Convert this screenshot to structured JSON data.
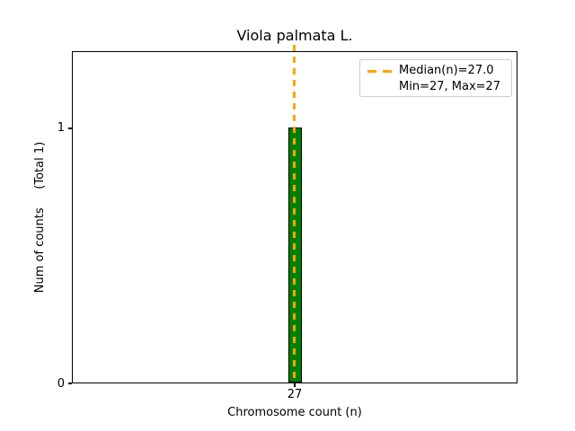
{
  "chart_data": {
    "type": "bar",
    "title": "Viola palmata L.",
    "xlabel": "Chromosome count (n)",
    "ylabel": "Num of counts     (Total 1)",
    "x": [
      27
    ],
    "values": [
      1
    ],
    "total_counts": 1,
    "median": 27.0,
    "min": 27,
    "max": 27,
    "xticks": [
      "27"
    ],
    "yticks": [
      "0",
      "1"
    ],
    "ylim": [
      0,
      1.3
    ],
    "grid": false,
    "legend": {
      "position": "upper right",
      "entries": [
        {
          "label": "Median(n)=27.0",
          "marker": "dashed-line"
        },
        {
          "label": "Min=27, Max=27",
          "marker": "none"
        }
      ]
    },
    "colors": {
      "bar_fill": "#008000",
      "bar_edge": "#000000",
      "median_line": "#FFA500",
      "axes": "#000000",
      "background": "#ffffff",
      "legend_border": "#cccccc"
    }
  }
}
